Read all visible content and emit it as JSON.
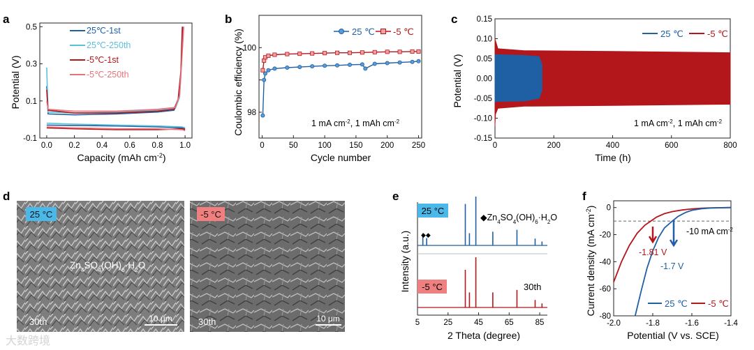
{
  "colors": {
    "blue": "#1f5fa3",
    "light_blue": "#5bc0d8",
    "red": "#b3161b",
    "pink": "#e8737c",
    "dash": "#666666"
  },
  "watermark": "大数跨境",
  "panels": {
    "a": {
      "letter": "a",
      "xlabel": "Capacity (mAh cm",
      "xlabel_sup": "-2",
      "xlabel_end": ")",
      "ylabel": "Potential (V)"
    },
    "b": {
      "letter": "b",
      "xlabel": "Cycle number",
      "ylabel": "Coulombic efficiency (%)",
      "note": "1 mA cm",
      "note_sup": "-2",
      "note_mid": ", 1 mAh cm",
      "note_sup2": "-2"
    },
    "c": {
      "letter": "c",
      "xlabel": "Time (h)",
      "ylabel": "Potential (V)",
      "note": "1 mA cm",
      "note_sup": "-2",
      "note_mid": ", 1 mAh cm",
      "note_sup2": "-2"
    },
    "d": {
      "letter": "d",
      "left_badge": "25 °C",
      "right_badge": "-5 °C",
      "label_main": "Zn",
      "label_s1": "4",
      "label_m2": "SO",
      "label_s2": "4",
      "label_m3": "(OH)",
      "label_s3": "6",
      "label_m4": "·H",
      "label_s4": "2",
      "label_m5": "O",
      "cycle_left": "30th",
      "cycle_right": "30th",
      "scale_left": "10 μm",
      "scale_right": "10 μm"
    },
    "e": {
      "letter": "e",
      "xlabel": "2 Theta (degree)",
      "ylabel": "Intensity (a.u.)",
      "badge_top": "25 °C",
      "badge_bottom": "-5 °C",
      "phase": "◆Zn",
      "ph_s1": "4",
      "ph_m2": "SO",
      "ph_s2": "4",
      "ph_m3": "(OH)",
      "ph_s3": "6",
      "ph_m4": "·H",
      "ph_s4": "2",
      "ph_m5": "O",
      "markers": "◆◆",
      "cycle": "30th"
    },
    "f": {
      "letter": "f",
      "xlabel": "Potential (V vs. SCE)",
      "ylabel": "Current density (mA cm",
      "ylabel_sup": "-2",
      "ylabel_end": ")",
      "ref": "-10 mA cm",
      "ref_sup": "-2",
      "ann_red": "-1.81 V",
      "ann_blue": "-1.7 V"
    }
  },
  "chart_data": [
    {
      "panel": "a",
      "type": "line",
      "xlabel": "Capacity (mAh cm-2)",
      "ylabel": "Potential (V)",
      "xlim": [
        -0.05,
        1.05
      ],
      "ylim": [
        -0.1,
        0.52
      ],
      "xticks": [
        0.0,
        0.2,
        0.4,
        0.6,
        0.8,
        1.0
      ],
      "xtick_labels": [
        "0.0",
        "0.2",
        "0.4",
        "0.6",
        "0.8",
        "1.0"
      ],
      "yticks": [
        -0.1,
        0.1,
        0.3,
        0.5
      ],
      "ytick_labels": [
        "-0.1",
        "0.1",
        "0.3",
        "0.5"
      ],
      "legend": [
        "25℃-1st",
        "25℃-250th",
        "-5℃-1st",
        "-5℃-250th"
      ],
      "series": [
        {
          "name": "25℃-1st",
          "color": "blue",
          "upper": [
            [
              0,
              0.18
            ],
            [
              0.01,
              0.03
            ],
            [
              0.2,
              0.025
            ],
            [
              0.5,
              0.03
            ],
            [
              0.8,
              0.04
            ],
            [
              0.92,
              0.05
            ],
            [
              0.95,
              0.1
            ],
            [
              0.97,
              0.25
            ],
            [
              0.985,
              0.5
            ]
          ],
          "lower": [
            [
              0,
              -0.03
            ],
            [
              0.2,
              -0.032
            ],
            [
              0.5,
              -0.035
            ],
            [
              0.8,
              -0.04
            ],
            [
              0.98,
              -0.045
            ],
            [
              1.0,
              -0.05
            ]
          ]
        },
        {
          "name": "25℃-250th",
          "color": "light_blue",
          "upper": [
            [
              0,
              0.28
            ],
            [
              0.01,
              0.04
            ],
            [
              0.2,
              0.035
            ],
            [
              0.5,
              0.04
            ],
            [
              0.8,
              0.05
            ],
            [
              0.93,
              0.06
            ],
            [
              0.96,
              0.12
            ],
            [
              0.975,
              0.3
            ],
            [
              0.99,
              0.5
            ]
          ],
          "lower": [
            [
              0,
              -0.02
            ],
            [
              0.2,
              -0.025
            ],
            [
              0.5,
              -0.03
            ],
            [
              0.8,
              -0.035
            ],
            [
              0.98,
              -0.04
            ],
            [
              1.0,
              -0.045
            ]
          ]
        },
        {
          "name": "-5℃-1st",
          "color": "red",
          "upper": [
            [
              0,
              0.16
            ],
            [
              0.01,
              0.05
            ],
            [
              0.2,
              0.035
            ],
            [
              0.5,
              0.035
            ],
            [
              0.8,
              0.045
            ],
            [
              0.92,
              0.055
            ],
            [
              0.95,
              0.11
            ],
            [
              0.97,
              0.26
            ],
            [
              0.98,
              0.5
            ]
          ],
          "lower": [
            [
              0,
              -0.045
            ],
            [
              0.2,
              -0.05
            ],
            [
              0.5,
              -0.055
            ],
            [
              0.8,
              -0.055
            ],
            [
              0.98,
              -0.05
            ],
            [
              1.0,
              -0.055
            ]
          ]
        },
        {
          "name": "-5℃-250th",
          "color": "pink",
          "upper": [
            [
              0,
              0.1
            ],
            [
              0.01,
              0.055
            ],
            [
              0.2,
              0.045
            ],
            [
              0.5,
              0.045
            ],
            [
              0.8,
              0.055
            ],
            [
              0.93,
              0.065
            ],
            [
              0.96,
              0.13
            ],
            [
              0.975,
              0.3
            ],
            [
              0.99,
              0.5
            ]
          ],
          "lower": [
            [
              0,
              -0.04
            ],
            [
              0.2,
              -0.045
            ],
            [
              0.5,
              -0.05
            ],
            [
              0.8,
              -0.05
            ],
            [
              0.98,
              -0.055
            ],
            [
              1.0,
              -0.06
            ]
          ]
        }
      ]
    },
    {
      "panel": "b",
      "type": "scatter",
      "xlabel": "Cycle number",
      "ylabel": "Coulombic efficiency (%)",
      "xlim": [
        -5,
        255
      ],
      "ylim": [
        97.2,
        101.0
      ],
      "xticks": [
        0,
        50,
        100,
        150,
        200,
        250
      ],
      "yticks": [
        98,
        99,
        100
      ],
      "ytick_labels": [
        "98",
        "",
        "100"
      ],
      "legend": [
        "25 ℃",
        "-5 ℃"
      ],
      "series": [
        {
          "name": "25 ℃",
          "color": "blue",
          "marker": "circle",
          "points": [
            [
              1,
              97.9
            ],
            [
              3,
              99.0
            ],
            [
              5,
              99.2
            ],
            [
              10,
              99.3
            ],
            [
              20,
              99.35
            ],
            [
              40,
              99.38
            ],
            [
              60,
              99.4
            ],
            [
              80,
              99.42
            ],
            [
              100,
              99.44
            ],
            [
              120,
              99.45
            ],
            [
              140,
              99.47
            ],
            [
              160,
              99.48
            ],
            [
              165,
              99.35
            ],
            [
              180,
              99.5
            ],
            [
              200,
              99.52
            ],
            [
              220,
              99.54
            ],
            [
              240,
              99.56
            ],
            [
              250,
              99.58
            ]
          ]
        },
        {
          "name": "-5 ℃",
          "color": "red",
          "marker": "square",
          "points": [
            [
              1,
              99.3
            ],
            [
              3,
              99.6
            ],
            [
              5,
              99.7
            ],
            [
              10,
              99.75
            ],
            [
              20,
              99.78
            ],
            [
              40,
              99.8
            ],
            [
              60,
              99.81
            ],
            [
              80,
              99.82
            ],
            [
              100,
              99.83
            ],
            [
              120,
              99.84
            ],
            [
              140,
              99.84
            ],
            [
              160,
              99.85
            ],
            [
              180,
              99.86
            ],
            [
              200,
              99.87
            ],
            [
              220,
              99.87
            ],
            [
              240,
              99.88
            ],
            [
              250,
              99.88
            ]
          ]
        }
      ]
    },
    {
      "panel": "c",
      "type": "area",
      "xlabel": "Time (h)",
      "ylabel": "Potential (V)",
      "xlim": [
        0,
        800
      ],
      "ylim": [
        -0.15,
        0.15
      ],
      "xticks": [
        0,
        200,
        400,
        600,
        800
      ],
      "yticks": [
        -0.15,
        -0.1,
        -0.05,
        0.0,
        0.05,
        0.1,
        0.15
      ],
      "ytick_labels": [
        "-0.15",
        "-0.10",
        "-0.05",
        "0.00",
        "0.05",
        "0.10",
        "0.15"
      ],
      "legend": [
        "25 ℃",
        "-5 ℃"
      ],
      "series": [
        {
          "name": "-5 ℃",
          "color": "red",
          "upper": [
            [
              0,
              0.1
            ],
            [
              2,
              0.095
            ],
            [
              10,
              0.075
            ],
            [
              100,
              0.07
            ],
            [
              400,
              0.068
            ],
            [
              800,
              0.065
            ]
          ],
          "lower": [
            [
              0,
              -0.12
            ],
            [
              2,
              -0.09
            ],
            [
              10,
              -0.075
            ],
            [
              100,
              -0.07
            ],
            [
              400,
              -0.068
            ],
            [
              800,
              -0.065
            ]
          ]
        },
        {
          "name": "25 ℃",
          "color": "blue",
          "upper": [
            [
              0,
              0.06
            ],
            [
              5,
              0.06
            ],
            [
              100,
              0.058
            ],
            [
              150,
              0.055
            ],
            [
              160,
              0.035
            ]
          ],
          "lower": [
            [
              0,
              -0.06
            ],
            [
              5,
              -0.058
            ],
            [
              100,
              -0.057
            ],
            [
              150,
              -0.05
            ],
            [
              160,
              -0.03
            ]
          ]
        }
      ]
    },
    {
      "panel": "e",
      "type": "bar",
      "xlabel": "2 Theta (degree)",
      "ylabel": "Intensity (a.u.)",
      "xlim": [
        5,
        90
      ],
      "xticks": [
        5,
        25,
        45,
        65,
        85
      ],
      "series": [
        {
          "name": "25 °C",
          "color": "blue",
          "peaks": [
            [
              8.5,
              0.25
            ],
            [
              11,
              0.15
            ],
            [
              36.3,
              0.85
            ],
            [
              39,
              0.25
            ],
            [
              43.2,
              1.0
            ],
            [
              54.3,
              0.28
            ],
            [
              70.1,
              0.32
            ],
            [
              82,
              0.14
            ],
            [
              86.5,
              0.08
            ]
          ]
        },
        {
          "name": "-5 °C",
          "color": "red",
          "peaks": [
            [
              36.3,
              0.75
            ],
            [
              39,
              0.3
            ],
            [
              43.2,
              1.0
            ],
            [
              54.3,
              0.3
            ],
            [
              70.1,
              0.35
            ],
            [
              82,
              0.15
            ],
            [
              86.5,
              0.08
            ]
          ]
        }
      ]
    },
    {
      "panel": "f",
      "type": "line",
      "xlabel": "Potential (V vs. SCE)",
      "ylabel": "Current density (mA cm-2)",
      "xlim": [
        -2.0,
        -1.4
      ],
      "ylim": [
        -80,
        5
      ],
      "xticks": [
        -2.0,
        -1.8,
        -1.6,
        -1.4
      ],
      "xtick_labels": [
        "-2.0",
        "-1.8",
        "-1.6",
        "-1.4"
      ],
      "yticks": [
        -80,
        -60,
        -40,
        -20,
        0
      ],
      "legend": [
        "25 ℃",
        "-5 ℃"
      ],
      "reference_line": -10,
      "series": [
        {
          "name": "-5 ℃",
          "color": "red",
          "points": [
            [
              -2.0,
              -55
            ],
            [
              -1.96,
              -40
            ],
            [
              -1.92,
              -28
            ],
            [
              -1.88,
              -19
            ],
            [
              -1.84,
              -13
            ],
            [
              -1.81,
              -10
            ],
            [
              -1.78,
              -7
            ],
            [
              -1.74,
              -4.5
            ],
            [
              -1.7,
              -3
            ],
            [
              -1.65,
              -1.8
            ],
            [
              -1.6,
              -1
            ],
            [
              -1.55,
              -0.5
            ],
            [
              -1.5,
              -0.2
            ],
            [
              -1.4,
              0
            ]
          ]
        },
        {
          "name": "25 ℃",
          "color": "blue",
          "points": [
            [
              -1.89,
              -80
            ],
            [
              -1.86,
              -62
            ],
            [
              -1.83,
              -45
            ],
            [
              -1.8,
              -32
            ],
            [
              -1.77,
              -22
            ],
            [
              -1.74,
              -15
            ],
            [
              -1.7,
              -10
            ],
            [
              -1.67,
              -6.5
            ],
            [
              -1.63,
              -3.5
            ],
            [
              -1.6,
              -2
            ],
            [
              -1.55,
              -0.8
            ],
            [
              -1.5,
              -0.3
            ],
            [
              -1.4,
              0
            ]
          ]
        }
      ]
    }
  ]
}
